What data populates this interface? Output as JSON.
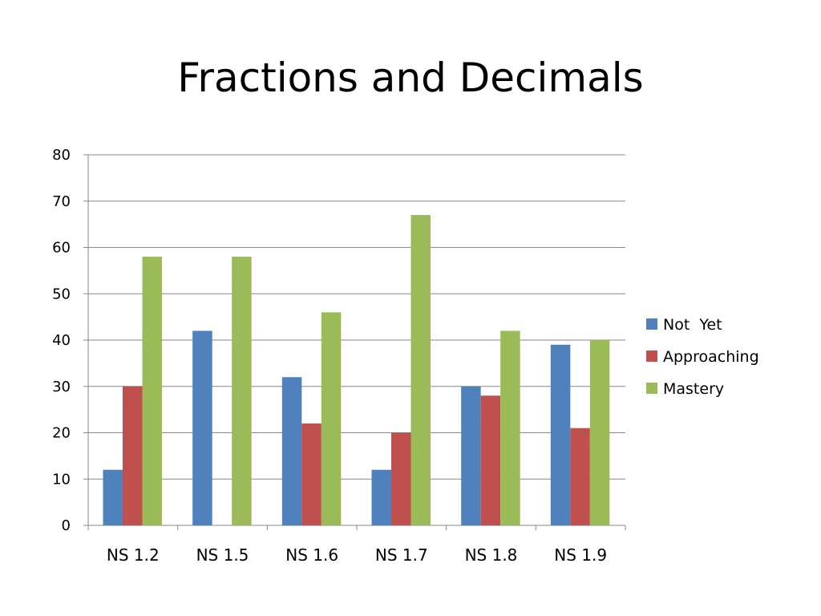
{
  "slide": {
    "title": "Fractions and Decimals"
  },
  "chart_data": {
    "type": "bar",
    "title": "",
    "xlabel": "",
    "ylabel": "",
    "ylim": [
      0,
      80
    ],
    "yticks": [
      0,
      10,
      20,
      30,
      40,
      50,
      60,
      70,
      80
    ],
    "grid": true,
    "legend_position": "right",
    "categories": [
      "NS 1.2",
      "NS 1.5",
      "NS 1.6",
      "NS 1.7",
      "NS 1.8",
      "NS 1.9"
    ],
    "series": [
      {
        "name": "Not  Yet",
        "color": "#4F81BD",
        "values": [
          12,
          42,
          32,
          12,
          30,
          39
        ]
      },
      {
        "name": "Approaching",
        "color": "#C0504D",
        "values": [
          30,
          0,
          22,
          20,
          28,
          21
        ]
      },
      {
        "name": "Mastery",
        "color": "#9BBB59",
        "values": [
          58,
          58,
          46,
          67,
          42,
          40
        ]
      }
    ]
  }
}
